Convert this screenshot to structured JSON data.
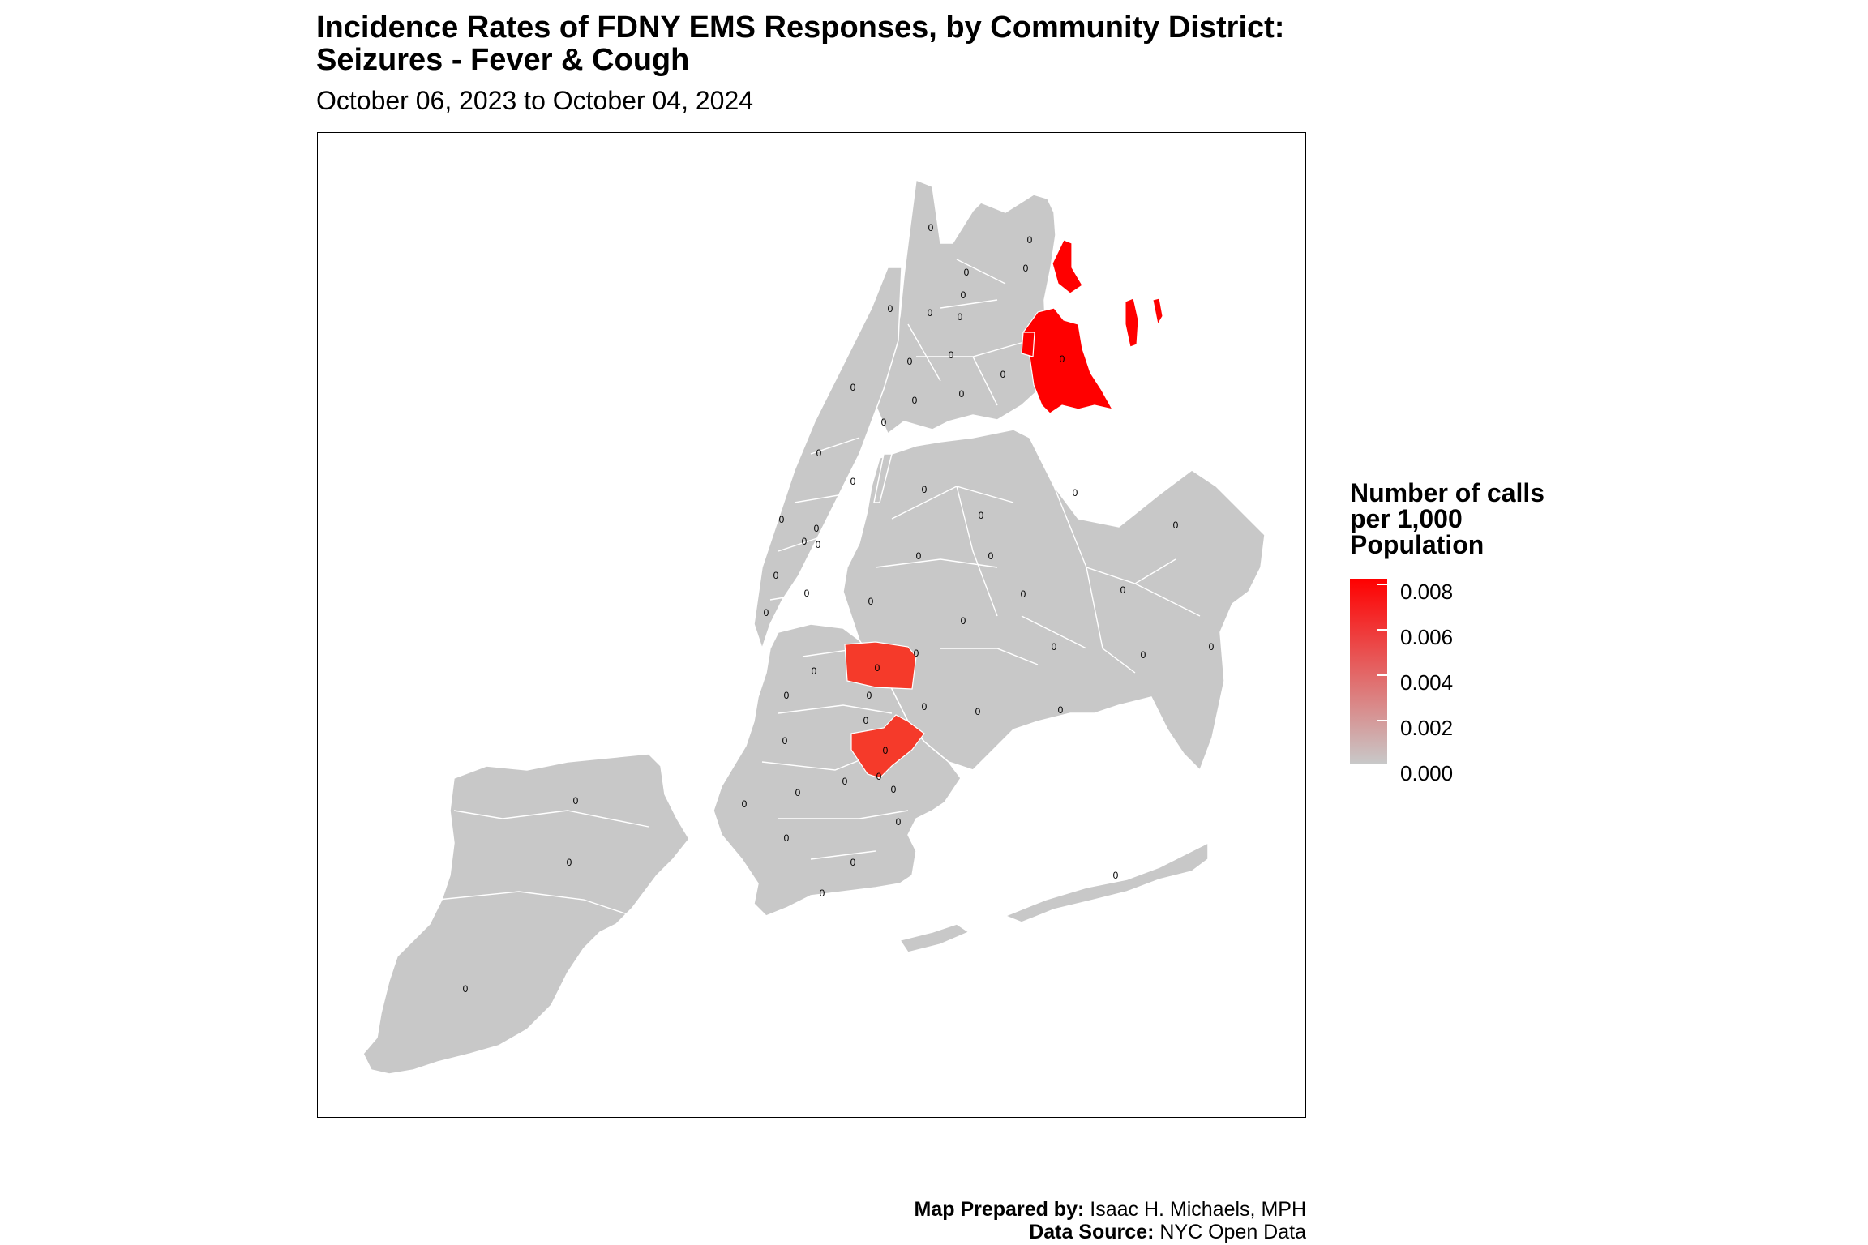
{
  "title_line1": "Incidence Rates of FDNY EMS Responses, by Community District:",
  "title_line2": "Seizures - Fever & Cough",
  "subtitle": "October 06, 2023 to October 04, 2024",
  "legend": {
    "title_lines": [
      "Number of calls",
      "per 1,000",
      "Population"
    ],
    "ticks": [
      "0.008",
      "0.006",
      "0.004",
      "0.002",
      "0.000"
    ],
    "colors": {
      "low": "#c8c8c8",
      "high": "#ff0000"
    }
  },
  "caption": {
    "line1_bold": "Map Prepared by:",
    "line1_text": " Isaac H. Michaels, MPH",
    "line2_bold": "Data Source:",
    "line2_text": " NYC Open Data"
  },
  "map": {
    "region_fill": "#c8c8c8",
    "highlight_fill": "#ff0000",
    "mid_fill": "#f53a2a",
    "district_labels": [
      "0",
      "0",
      "0",
      "0",
      "0",
      "0",
      "0",
      "0",
      "0",
      "0",
      "0",
      "0",
      "0",
      "0",
      "0",
      "0",
      "0",
      "0",
      "0",
      "0",
      "0",
      "0",
      "0",
      "0",
      "0",
      "0",
      "0",
      "0",
      "0",
      "0",
      "0",
      "0",
      "0",
      "0",
      "0",
      "0",
      "0",
      "0",
      "0",
      "0",
      "0",
      "0",
      "0",
      "0",
      "0",
      "0",
      "0",
      "0",
      "0",
      "0",
      "0",
      "0",
      "0",
      "0",
      "0",
      "0",
      "0",
      "0",
      "0",
      "0"
    ]
  }
}
